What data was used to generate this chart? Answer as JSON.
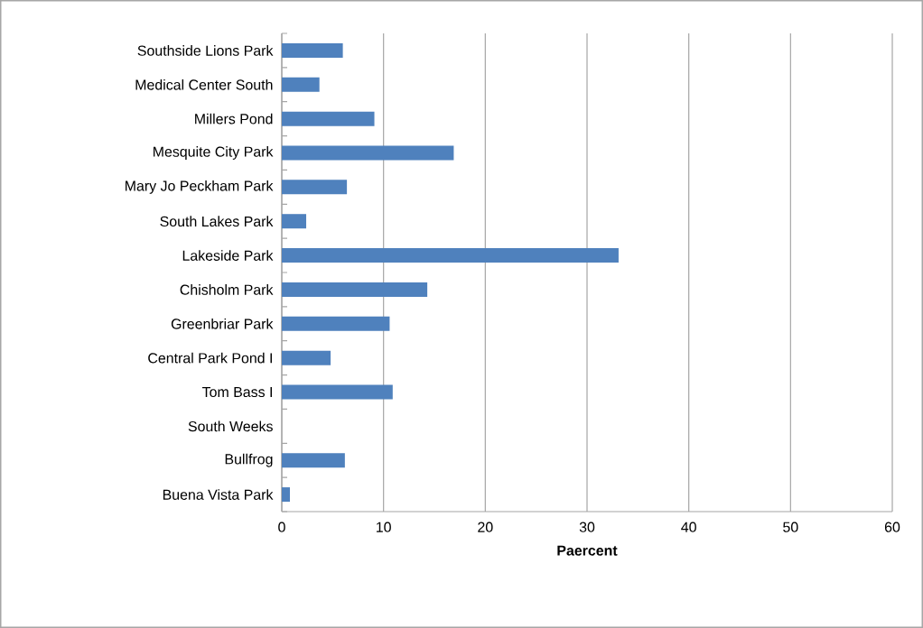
{
  "chart_data": {
    "type": "bar",
    "orientation": "horizontal",
    "xlabel": "Paercent",
    "categories": [
      "Southside Lions Park",
      "Medical Center South",
      "Millers Pond",
      "Mesquite City Park",
      "Mary Jo Peckham Park",
      "South Lakes Park",
      "Lakeside Park",
      "Chisholm Park",
      "Greenbriar Park",
      "Central Park Pond I",
      "Tom Bass I",
      "South Weeks",
      "Bullfrog",
      "Buena Vista Park"
    ],
    "values": [
      6.0,
      3.7,
      9.1,
      16.9,
      6.4,
      2.4,
      33.1,
      14.3,
      10.6,
      4.8,
      10.9,
      0,
      6.2,
      0.8
    ],
    "color": "#4f81bd",
    "xlim": [
      0,
      60
    ],
    "xticks": [
      0,
      10,
      20,
      30,
      40,
      50,
      60
    ],
    "grid": "x"
  }
}
